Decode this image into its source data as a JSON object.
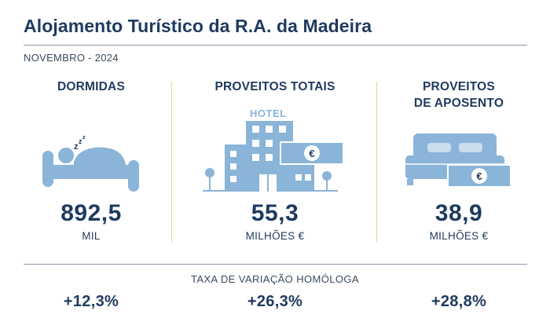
{
  "header": {
    "title": "Alojamento Turístico da R.A. da Madeira",
    "subtitle": "NOVEMBRO - 2024"
  },
  "colors": {
    "text": "#1f3a5f",
    "icon": "#8ab4d8",
    "divider": "#f0d58a",
    "rule": "#8a97a8"
  },
  "indicators": [
    {
      "heading": "DORMIDAS",
      "value": "892,5",
      "unit": "MIL",
      "icon": "sleeping-person-icon"
    },
    {
      "heading": "PROVEITOS TOTAIS",
      "value": "55,3",
      "unit": "MILHÕES €",
      "icon": "hotel-icon",
      "icon_text": "HOTEL"
    },
    {
      "heading_line1": "PROVEITOS",
      "heading_line2": "DE APOSENTO",
      "value": "38,9",
      "unit": "MILHÕES €",
      "icon": "bedroom-icon"
    }
  ],
  "variation": {
    "label": "TAXA DE VARIAÇÃO HOMÓLOGA",
    "rates": [
      "+12,3%",
      "+26,3%",
      "+28,8%"
    ]
  }
}
